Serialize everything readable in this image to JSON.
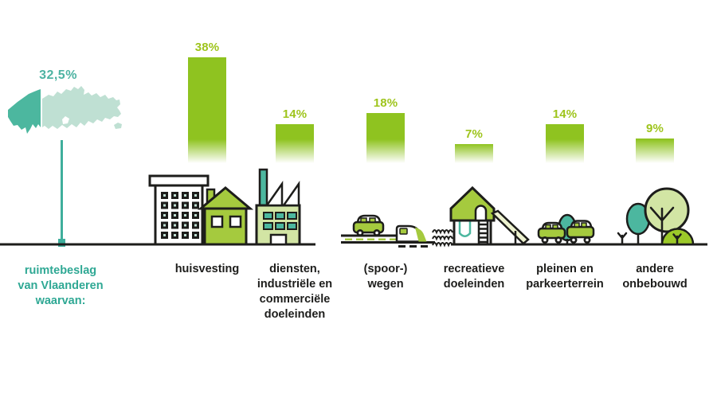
{
  "chart_data": {
    "type": "bar",
    "overall": {
      "label": "32,5%",
      "caption": "ruimtebeslag\nvan Vlaanderen\nwaarvan:"
    },
    "categories": [
      "huisvesting",
      "diensten,\nindustriële en\ncommerciële\ndoeleinden",
      "(spoor-)\nwegen",
      "recreatieve\ndoeleinden",
      "pleinen en\nparkeerterrein",
      "andere\nonbebouwd"
    ],
    "values": [
      38,
      14,
      18,
      7,
      14,
      9
    ],
    "value_labels": [
      "38%",
      "14%",
      "18%",
      "7%",
      "14%",
      "9%"
    ],
    "unit": "%",
    "legend": "none",
    "axes": "none",
    "grid": false
  },
  "colors": {
    "bar_green": "#8fc320",
    "value_label_green": "#9ec41c",
    "teal_dark": "#4cb79f",
    "teal_light": "#bfe0d3",
    "teal_text": "#2fa894",
    "text_black": "#1d1d1b",
    "illustration_green": "#a5ca3e",
    "illustration_light_green": "#d2e5a4"
  },
  "icons": [
    "flanders-map-icon",
    "apartment-building-icon",
    "house-icon",
    "factory-icon",
    "car-icon",
    "train-icon",
    "railway-tracks-icon",
    "playground-icon",
    "parked-cars-icon",
    "parking-tree-icon",
    "sprout-icon",
    "teal-tree-icon",
    "round-tree-icon",
    "bush-icon"
  ]
}
